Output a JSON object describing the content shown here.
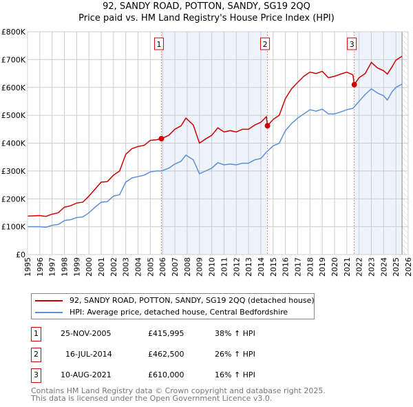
{
  "title": "92, SANDY ROAD, POTTON, SANDY, SG19 2QQ",
  "subtitle": "Price paid vs. HM Land Registry's House Price Index (HPI)",
  "legend": {
    "property": "92, SANDY ROAD, POTTON, SANDY, SG19 2QQ (detached house)",
    "hpi": "HPI: Average price, detached house, Central Bedfordshire"
  },
  "sales": [
    {
      "num": "1",
      "date": "25-NOV-2005",
      "price": "£415,995",
      "hpi": "38% ↑ HPI"
    },
    {
      "num": "2",
      "date": "16-JUL-2014",
      "price": "£462,500",
      "hpi": "26% ↑ HPI"
    },
    {
      "num": "3",
      "date": "10-AUG-2021",
      "price": "£610,000",
      "hpi": "16% ↑ HPI"
    }
  ],
  "footer": [
    "Contains HM Land Registry data © Crown copyright and database right 2025.",
    "This data is licensed under the Open Government Licence v3.0."
  ],
  "chart_data": {
    "type": "line",
    "xlim": [
      1995,
      2026
    ],
    "ylim": [
      0,
      800000
    ],
    "yticks": [
      {
        "v": 0,
        "l": "£0"
      },
      {
        "v": 100000,
        "l": "£100K"
      },
      {
        "v": 200000,
        "l": "£200K"
      },
      {
        "v": 300000,
        "l": "£300K"
      },
      {
        "v": 400000,
        "l": "£400K"
      },
      {
        "v": 500000,
        "l": "£500K"
      },
      {
        "v": 600000,
        "l": "£600K"
      },
      {
        "v": 700000,
        "l": "£700K"
      },
      {
        "v": 800000,
        "l": "£800K"
      }
    ],
    "xticks": [
      "1995",
      "1996",
      "1997",
      "1998",
      "1999",
      "2000",
      "2001",
      "2002",
      "2003",
      "2004",
      "2005",
      "2006",
      "2007",
      "2008",
      "2009",
      "2010",
      "2011",
      "2012",
      "2013",
      "2014",
      "2015",
      "2016",
      "2017",
      "2018",
      "2019",
      "2020",
      "2021",
      "2022",
      "2023",
      "2024",
      "2025",
      "2026"
    ],
    "data_end": 2025.5,
    "sale_points": [
      {
        "label": "1",
        "x": 2005.9,
        "y": 415995
      },
      {
        "label": "2",
        "x": 2014.54,
        "y": 462500
      },
      {
        "label": "3",
        "x": 2021.61,
        "y": 610000
      }
    ],
    "colors": {
      "property": "#cc0000",
      "hpi": "#5b8fd4",
      "shade": "#eef3fc"
    },
    "series": [
      {
        "name": "property",
        "x": [
          1995,
          1996,
          1996.5,
          1997,
          1997.5,
          1998,
          1998.5,
          1999,
          1999.5,
          2000,
          2000.5,
          2001,
          2001.5,
          2002,
          2002.5,
          2003,
          2003.5,
          2004,
          2004.5,
          2005,
          2005.5,
          2005.9,
          2006.5,
          2007,
          2007.5,
          2007.9,
          2008.5,
          2009,
          2009.5,
          2010,
          2010.5,
          2011,
          2011.5,
          2012,
          2012.5,
          2013,
          2013.5,
          2014,
          2014.45,
          2014.54,
          2015,
          2015.5,
          2016,
          2016.5,
          2017,
          2017.5,
          2018,
          2018.5,
          2019,
          2019.5,
          2020,
          2020.5,
          2021,
          2021.5,
          2021.61,
          2022,
          2022.5,
          2023,
          2023.5,
          2024,
          2024.3,
          2024.7,
          2025,
          2025.5
        ],
        "y": [
          138,
          140,
          137,
          145,
          150,
          170,
          175,
          185,
          188,
          210,
          235,
          260,
          262,
          285,
          300,
          360,
          380,
          388,
          392,
          410,
          412,
          416,
          428,
          450,
          462,
          490,
          465,
          400,
          415,
          428,
          455,
          440,
          445,
          440,
          450,
          450,
          465,
          475,
          495,
          462,
          485,
          500,
          560,
          595,
          618,
          640,
          655,
          650,
          658,
          635,
          640,
          648,
          655,
          645,
          610,
          635,
          650,
          690,
          670,
          660,
          648,
          675,
          698,
          712
        ]
      },
      {
        "name": "hpi",
        "x": [
          1995,
          1996,
          1996.5,
          1997,
          1997.5,
          1998,
          1998.5,
          1999,
          1999.5,
          2000,
          2000.5,
          2001,
          2001.5,
          2002,
          2002.5,
          2003,
          2003.5,
          2004,
          2004.5,
          2005,
          2005.5,
          2005.9,
          2006.5,
          2007,
          2007.5,
          2007.9,
          2008.5,
          2009,
          2009.5,
          2010,
          2010.5,
          2011,
          2011.5,
          2012,
          2012.5,
          2013,
          2013.5,
          2014,
          2014.5,
          2015,
          2015.5,
          2016,
          2016.5,
          2017,
          2017.5,
          2018,
          2018.5,
          2019,
          2019.5,
          2020,
          2020.5,
          2021,
          2021.5,
          2022,
          2022.5,
          2023,
          2023.5,
          2024,
          2024.3,
          2024.7,
          2025,
          2025.5
        ],
        "y": [
          100,
          100,
          98,
          105,
          108,
          122,
          125,
          133,
          135,
          150,
          170,
          188,
          190,
          210,
          215,
          260,
          275,
          280,
          285,
          297,
          300,
          300,
          310,
          325,
          335,
          357,
          340,
          290,
          300,
          310,
          330,
          322,
          325,
          322,
          328,
          328,
          340,
          345,
          370,
          390,
          400,
          445,
          470,
          490,
          505,
          520,
          515,
          522,
          505,
          505,
          512,
          520,
          525,
          550,
          575,
          595,
          580,
          570,
          555,
          585,
          600,
          612
        ]
      }
    ],
    "y_unit": "thousand GBP"
  }
}
